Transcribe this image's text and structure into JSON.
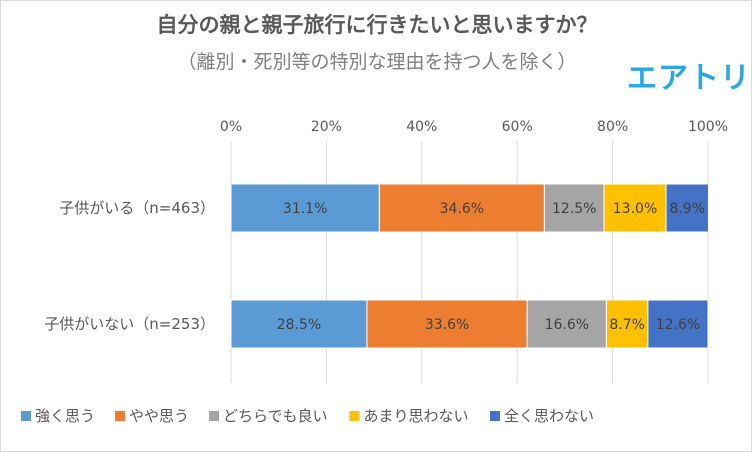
{
  "chart_data": {
    "type": "bar",
    "orientation": "horizontal",
    "stacked": true,
    "title": "自分の親と親子旅行に行きたいと思いますか？",
    "subtitle": "（離別・死別等の特別な理由を持つ人を除く）",
    "brand_logo": "エアトリ",
    "categories": [
      "子供がいる（n=463）",
      "子供がいない（n=253）"
    ],
    "series": [
      {
        "name": "強く思う",
        "color": "#5b9bd5",
        "values": [
          31.1,
          28.5
        ],
        "labels": [
          "31.1%",
          "28.5%"
        ]
      },
      {
        "name": "やや思う",
        "color": "#ed7d31",
        "values": [
          34.6,
          33.6
        ],
        "labels": [
          "34.6%",
          "33.6%"
        ]
      },
      {
        "name": "どちらでも良い",
        "color": "#a5a5a5",
        "values": [
          12.5,
          16.6
        ],
        "labels": [
          "12.5%",
          "16.6%"
        ]
      },
      {
        "name": "あまり思わない",
        "color": "#ffc000",
        "values": [
          13.0,
          8.7
        ],
        "labels": [
          "13.0%",
          "8.7%"
        ]
      },
      {
        "name": "全く思わない",
        "color": "#4472c4",
        "values": [
          8.9,
          12.6
        ],
        "labels": [
          "8.9%",
          "12.6%"
        ]
      }
    ],
    "xlim": [
      0,
      100
    ],
    "x_ticks": [
      "0%",
      "20%",
      "40%",
      "60%",
      "80%",
      "100%"
    ],
    "grid": true,
    "legend_position": "bottom"
  }
}
